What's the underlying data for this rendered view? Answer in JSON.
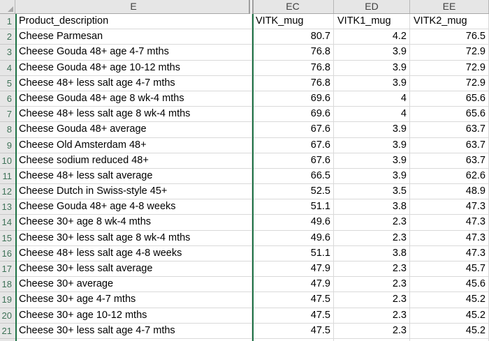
{
  "sheet": {
    "column_headers": [
      "E",
      "EC",
      "ED",
      "EE"
    ],
    "rows": [
      {
        "n": "1",
        "cells": [
          "Product_description",
          "VITK_mug",
          "VITK1_mug",
          "VITK2_mug"
        ]
      },
      {
        "n": "2",
        "cells": [
          "Cheese Parmesan",
          "80.7",
          "4.2",
          "76.5"
        ]
      },
      {
        "n": "3",
        "cells": [
          "Cheese Gouda 48+ age 4-7 mths",
          "76.8",
          "3.9",
          "72.9"
        ]
      },
      {
        "n": "4",
        "cells": [
          "Cheese Gouda 48+ age 10-12 mths",
          "76.8",
          "3.9",
          "72.9"
        ]
      },
      {
        "n": "5",
        "cells": [
          "Cheese 48+ less salt age 4-7 mths",
          "76.8",
          "3.9",
          "72.9"
        ]
      },
      {
        "n": "6",
        "cells": [
          "Cheese Gouda 48+ age 8 wk-4 mths",
          "69.6",
          "4",
          "65.6"
        ]
      },
      {
        "n": "7",
        "cells": [
          "Cheese 48+ less salt age 8 wk-4 mths",
          "69.6",
          "4",
          "65.6"
        ]
      },
      {
        "n": "8",
        "cells": [
          "Cheese Gouda 48+ average",
          "67.6",
          "3.9",
          "63.7"
        ]
      },
      {
        "n": "9",
        "cells": [
          "Cheese Old Amsterdam 48+",
          "67.6",
          "3.9",
          "63.7"
        ]
      },
      {
        "n": "10",
        "cells": [
          "Cheese sodium reduced 48+",
          "67.6",
          "3.9",
          "63.7"
        ]
      },
      {
        "n": "11",
        "cells": [
          "Cheese 48+ less salt average",
          "66.5",
          "3.9",
          "62.6"
        ]
      },
      {
        "n": "12",
        "cells": [
          "Cheese Dutch in Swiss-style 45+",
          "52.5",
          "3.5",
          "48.9"
        ]
      },
      {
        "n": "13",
        "cells": [
          "Cheese Gouda 48+ age 4-8 weeks",
          "51.1",
          "3.8",
          "47.3"
        ]
      },
      {
        "n": "14",
        "cells": [
          "Cheese 30+ age 8 wk-4 mths",
          "49.6",
          "2.3",
          "47.3"
        ]
      },
      {
        "n": "15",
        "cells": [
          "Cheese 30+ less salt age 8 wk-4 mths",
          "49.6",
          "2.3",
          "47.3"
        ]
      },
      {
        "n": "16",
        "cells": [
          "Cheese 48+ less salt age 4-8 weeks",
          "51.1",
          "3.8",
          "47.3"
        ]
      },
      {
        "n": "17",
        "cells": [
          "Cheese 30+ less salt average",
          "47.9",
          "2.3",
          "45.7"
        ]
      },
      {
        "n": "18",
        "cells": [
          "Cheese 30+ average",
          "47.9",
          "2.3",
          "45.6"
        ]
      },
      {
        "n": "19",
        "cells": [
          "Cheese 30+ age 4-7 mths",
          "47.5",
          "2.3",
          "45.2"
        ]
      },
      {
        "n": "20",
        "cells": [
          "Cheese 30+ age 10-12 mths",
          "47.5",
          "2.3",
          "45.2"
        ]
      },
      {
        "n": "21",
        "cells": [
          "Cheese 30+ less salt age 4-7 mths",
          "47.5",
          "2.3",
          "45.2"
        ]
      }
    ],
    "colors": {
      "header_bg": "#E6E6E6",
      "header_text": "#3F3F3F",
      "row_number_text": "#3E7257",
      "gridline": "#D9D9D9",
      "header_border": "#A6A6A6",
      "hidden_column_line_green": "#1E7145",
      "cell_text": "#000000",
      "select_all_triangle": "#A8A8A8"
    }
  }
}
